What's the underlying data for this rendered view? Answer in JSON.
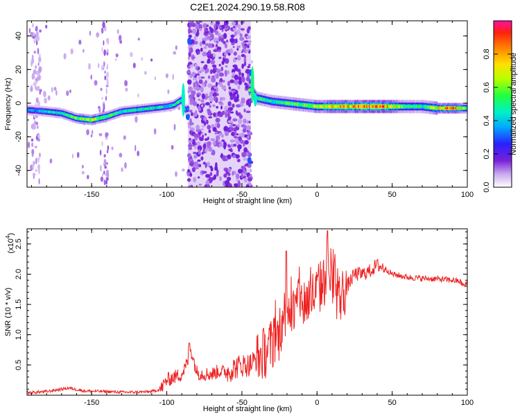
{
  "title": "C2E1.2024.290.19.58.R08",
  "chart_data": [
    {
      "type": "heatmap",
      "xlabel": "Height of straight line (km)",
      "ylabel": "Frequency (Hz)",
      "xlim": [
        -193,
        100
      ],
      "ylim": [
        -50,
        49
      ],
      "xticks": [
        -150,
        -100,
        -50,
        0,
        50,
        100
      ],
      "yticks": [
        -40,
        -20,
        0,
        20,
        40
      ],
      "colorbar": {
        "label": "Normalized spectral amplitude",
        "range": [
          0.0,
          1.0
        ],
        "ticks": [
          0.0,
          0.2,
          0.4,
          0.6,
          0.8
        ],
        "colormap": "rainbow"
      },
      "ridge": {
        "x": [
          -193,
          -180,
          -170,
          -160,
          -150,
          -140,
          -130,
          -120,
          -110,
          -100,
          -95,
          -90,
          -88,
          -44,
          -40,
          -35,
          -30,
          -20,
          -10,
          0,
          10,
          20,
          30,
          40,
          50,
          60,
          70,
          80,
          90,
          100
        ],
        "freq": [
          -4,
          -5,
          -6,
          -9,
          -10,
          -8,
          -5,
          -4,
          -3,
          -2,
          -1,
          2,
          -4,
          8,
          3,
          2,
          1,
          0,
          -1,
          -2,
          -2,
          -2,
          -2,
          -2,
          -2,
          -2,
          -2,
          -3,
          -3,
          -3
        ],
        "amplitude": [
          0.35,
          0.45,
          0.5,
          0.6,
          0.7,
          0.6,
          0.5,
          0.5,
          0.5,
          0.45,
          0.5,
          0.55,
          0.35,
          0.7,
          0.55,
          0.55,
          0.5,
          0.55,
          0.6,
          0.7,
          0.8,
          0.85,
          0.9,
          0.95,
          0.8,
          0.55,
          0.5,
          0.75,
          0.9,
          0.6
        ]
      },
      "noisy_band_x": [
        -86,
        -44
      ]
    },
    {
      "type": "line",
      "xlabel": "Height of straight line (km)",
      "ylabel": "SNR (10 * v/v)",
      "yscale_label": "(x10",
      "yscale_exponent": "4",
      "xlim": [
        -193,
        100
      ],
      "ylim": [
        0,
        2.75
      ],
      "xticks": [
        -150,
        -100,
        -50,
        0,
        50,
        100
      ],
      "yticks": [
        0.5,
        1.0,
        1.5,
        2.0,
        2.5
      ],
      "color": "#ee2222",
      "series": [
        {
          "x": [
            -193,
            -180,
            -170,
            -165,
            -155,
            -140,
            -130,
            -120,
            -110,
            -104,
            -100,
            -95,
            -90,
            -86,
            -85,
            -80,
            -75,
            -70,
            -65,
            -60,
            -55,
            -50,
            -45,
            -40,
            -35,
            -30,
            -25,
            -22,
            -20,
            -15,
            -12,
            -10,
            -5,
            0,
            5,
            7,
            10,
            15,
            20,
            25,
            30,
            35,
            40,
            45,
            50,
            60,
            70,
            80,
            90,
            95,
            98,
            100
          ],
          "y": [
            0.04,
            0.06,
            0.1,
            0.12,
            0.07,
            0.06,
            0.05,
            0.05,
            0.06,
            0.1,
            0.25,
            0.3,
            0.35,
            0.55,
            0.85,
            0.38,
            0.35,
            0.35,
            0.4,
            0.38,
            0.45,
            0.5,
            0.5,
            0.6,
            0.7,
            0.85,
            1.0,
            1.3,
            1.5,
            1.35,
            1.7,
            1.5,
            1.6,
            1.7,
            1.9,
            2.2,
            1.8,
            1.6,
            1.8,
            2.0,
            2.0,
            2.05,
            2.15,
            2.1,
            2.0,
            1.95,
            1.93,
            1.92,
            1.9,
            1.88,
            1.8,
            1.87
          ]
        }
      ]
    }
  ]
}
